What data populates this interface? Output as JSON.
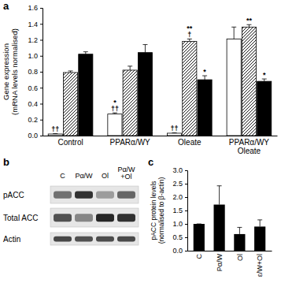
{
  "chart_data": [
    {
      "type": "bar",
      "title": "a",
      "y_label": "Gene expression\n(mRNA levels normalised)",
      "categories": [
        "Control",
        "PPARα/WY",
        "Oleate",
        "PPARα/WY\nOleate"
      ],
      "series": [
        {
          "color": "#ffffff",
          "values": [
            0.02,
            0.27,
            0.03,
            1.21
          ],
          "errors": [
            0.005,
            0.015,
            0.005,
            0.15
          ],
          "annotations": [
            [
              "††"
            ],
            [
              "*",
              "††"
            ],
            [
              "††"
            ],
            null
          ]
        },
        {
          "color": "#ffffff",
          "line_style": "hatched",
          "values": [
            0.79,
            0.82,
            1.18,
            1.36
          ],
          "errors": [
            0.02,
            0.05,
            0.03,
            0.03
          ],
          "annotations": [
            null,
            null,
            [
              "**",
              "†"
            ],
            [
              "**"
            ]
          ]
        },
        {
          "color": "#000000",
          "values": [
            1.02,
            1.04,
            0.7,
            0.68
          ],
          "errors": [
            0.03,
            0.1,
            0.05,
            0.03
          ],
          "annotations": [
            null,
            null,
            [
              "*"
            ],
            [
              "*"
            ]
          ]
        }
      ],
      "ylim": [
        0,
        1.6
      ],
      "yticks": [
        {
          "value": 0,
          "label": "0.0"
        },
        0.2,
        0.4,
        0.6,
        0.8,
        {
          "value": 1,
          "label": "1.0"
        },
        1.2,
        1.4,
        1.6
      ]
    },
    {
      "type": "bar",
      "title": "c",
      "y_label": "pACC protein levels\n(normalised to β-actin)",
      "categories": [
        "C",
        "Pα/W",
        "Ol",
        "ε/W+Ol"
      ],
      "values": [
        1.0,
        1.72,
        0.62,
        0.9
      ],
      "errors": [
        0,
        0.7,
        0.25,
        0.25
      ],
      "color": "#000000",
      "ylim": [
        0,
        3
      ],
      "yticks": [
        {
          "value": 0,
          "label": "0.0"
        },
        0.5,
        {
          "value": 1,
          "label": "1.0"
        },
        1.5,
        {
          "value": 2,
          "label": "2.0"
        },
        2.5,
        {
          "value": 3,
          "label": "3.0"
        }
      ]
    }
  ],
  "blot": {
    "title": "b",
    "lanes": [
      "C",
      "Pα/W",
      "Ol",
      "Pα/W\n+Ol"
    ],
    "rows": [
      "pACC",
      "Total ACC",
      "Actin"
    ]
  }
}
